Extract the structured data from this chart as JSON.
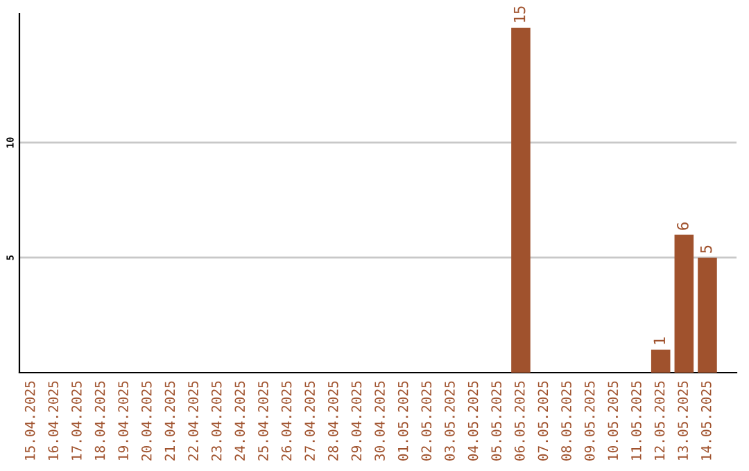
{
  "chart_data": {
    "type": "bar",
    "categories": [
      "15.04.2025",
      "16.04.2025",
      "17.04.2025",
      "18.04.2025",
      "19.04.2025",
      "20.04.2025",
      "21.04.2025",
      "22.04.2025",
      "23.04.2025",
      "24.04.2025",
      "25.04.2025",
      "26.04.2025",
      "27.04.2025",
      "28.04.2025",
      "29.04.2025",
      "30.04.2025",
      "01.05.2025",
      "02.05.2025",
      "03.05.2025",
      "04.05.2025",
      "05.05.2025",
      "06.05.2025",
      "07.05.2025",
      "08.05.2025",
      "09.05.2025",
      "10.05.2025",
      "11.05.2025",
      "12.05.2025",
      "13.05.2025",
      "14.05.2025"
    ],
    "values": [
      0,
      0,
      0,
      0,
      0,
      0,
      0,
      0,
      0,
      0,
      0,
      0,
      0,
      0,
      0,
      0,
      0,
      0,
      0,
      0,
      0,
      15,
      0,
      0,
      0,
      0,
      0,
      1,
      6,
      5
    ],
    "value_labels": [
      null,
      null,
      null,
      null,
      null,
      null,
      null,
      null,
      null,
      null,
      null,
      null,
      null,
      null,
      null,
      null,
      null,
      null,
      null,
      null,
      null,
      "15",
      null,
      null,
      null,
      null,
      null,
      "1",
      "6",
      "5"
    ],
    "color": "#a0522d",
    "ylim": [
      0,
      15.6
    ],
    "yticks": [
      5,
      10
    ],
    "grid": "y",
    "legend": false
  }
}
